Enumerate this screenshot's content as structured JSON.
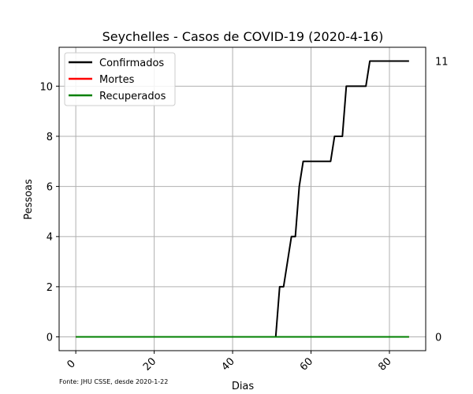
{
  "chart_data": {
    "type": "line",
    "title": "Seychelles - Casos de COVID-19 (2020-4-16)",
    "xlabel": "Dias",
    "ylabel": "Pessoas",
    "xlim": [
      -4.25,
      89.25
    ],
    "ylim": [
      -0.55,
      11.55
    ],
    "xticks": [
      0,
      20,
      40,
      60,
      80
    ],
    "yticks": [
      0,
      2,
      4,
      6,
      8,
      10
    ],
    "grid": true,
    "legend_position": "top-left",
    "source_note": "Fonte: JHU CSSE, desde 2020-1-22",
    "series": [
      {
        "name": "Confirmados",
        "color": "#000000",
        "points": [
          [
            0,
            0
          ],
          [
            51,
            0
          ],
          [
            52,
            2
          ],
          [
            53,
            2
          ],
          [
            55,
            4
          ],
          [
            56,
            4
          ],
          [
            57,
            6
          ],
          [
            58,
            7
          ],
          [
            65,
            7
          ],
          [
            66,
            8
          ],
          [
            68,
            8
          ],
          [
            69,
            10
          ],
          [
            74,
            10
          ],
          [
            75,
            11
          ],
          [
            85,
            11
          ]
        ]
      },
      {
        "name": "Mortes",
        "color": "#ff0000",
        "points": [
          [
            0,
            0
          ],
          [
            85,
            0
          ]
        ]
      },
      {
        "name": "Recuperados",
        "color": "#008000",
        "points": [
          [
            0,
            0
          ],
          [
            85,
            0
          ]
        ]
      }
    ],
    "side_labels": [
      {
        "text": "11",
        "value": 11
      },
      {
        "text": "0",
        "value": 0
      }
    ]
  }
}
